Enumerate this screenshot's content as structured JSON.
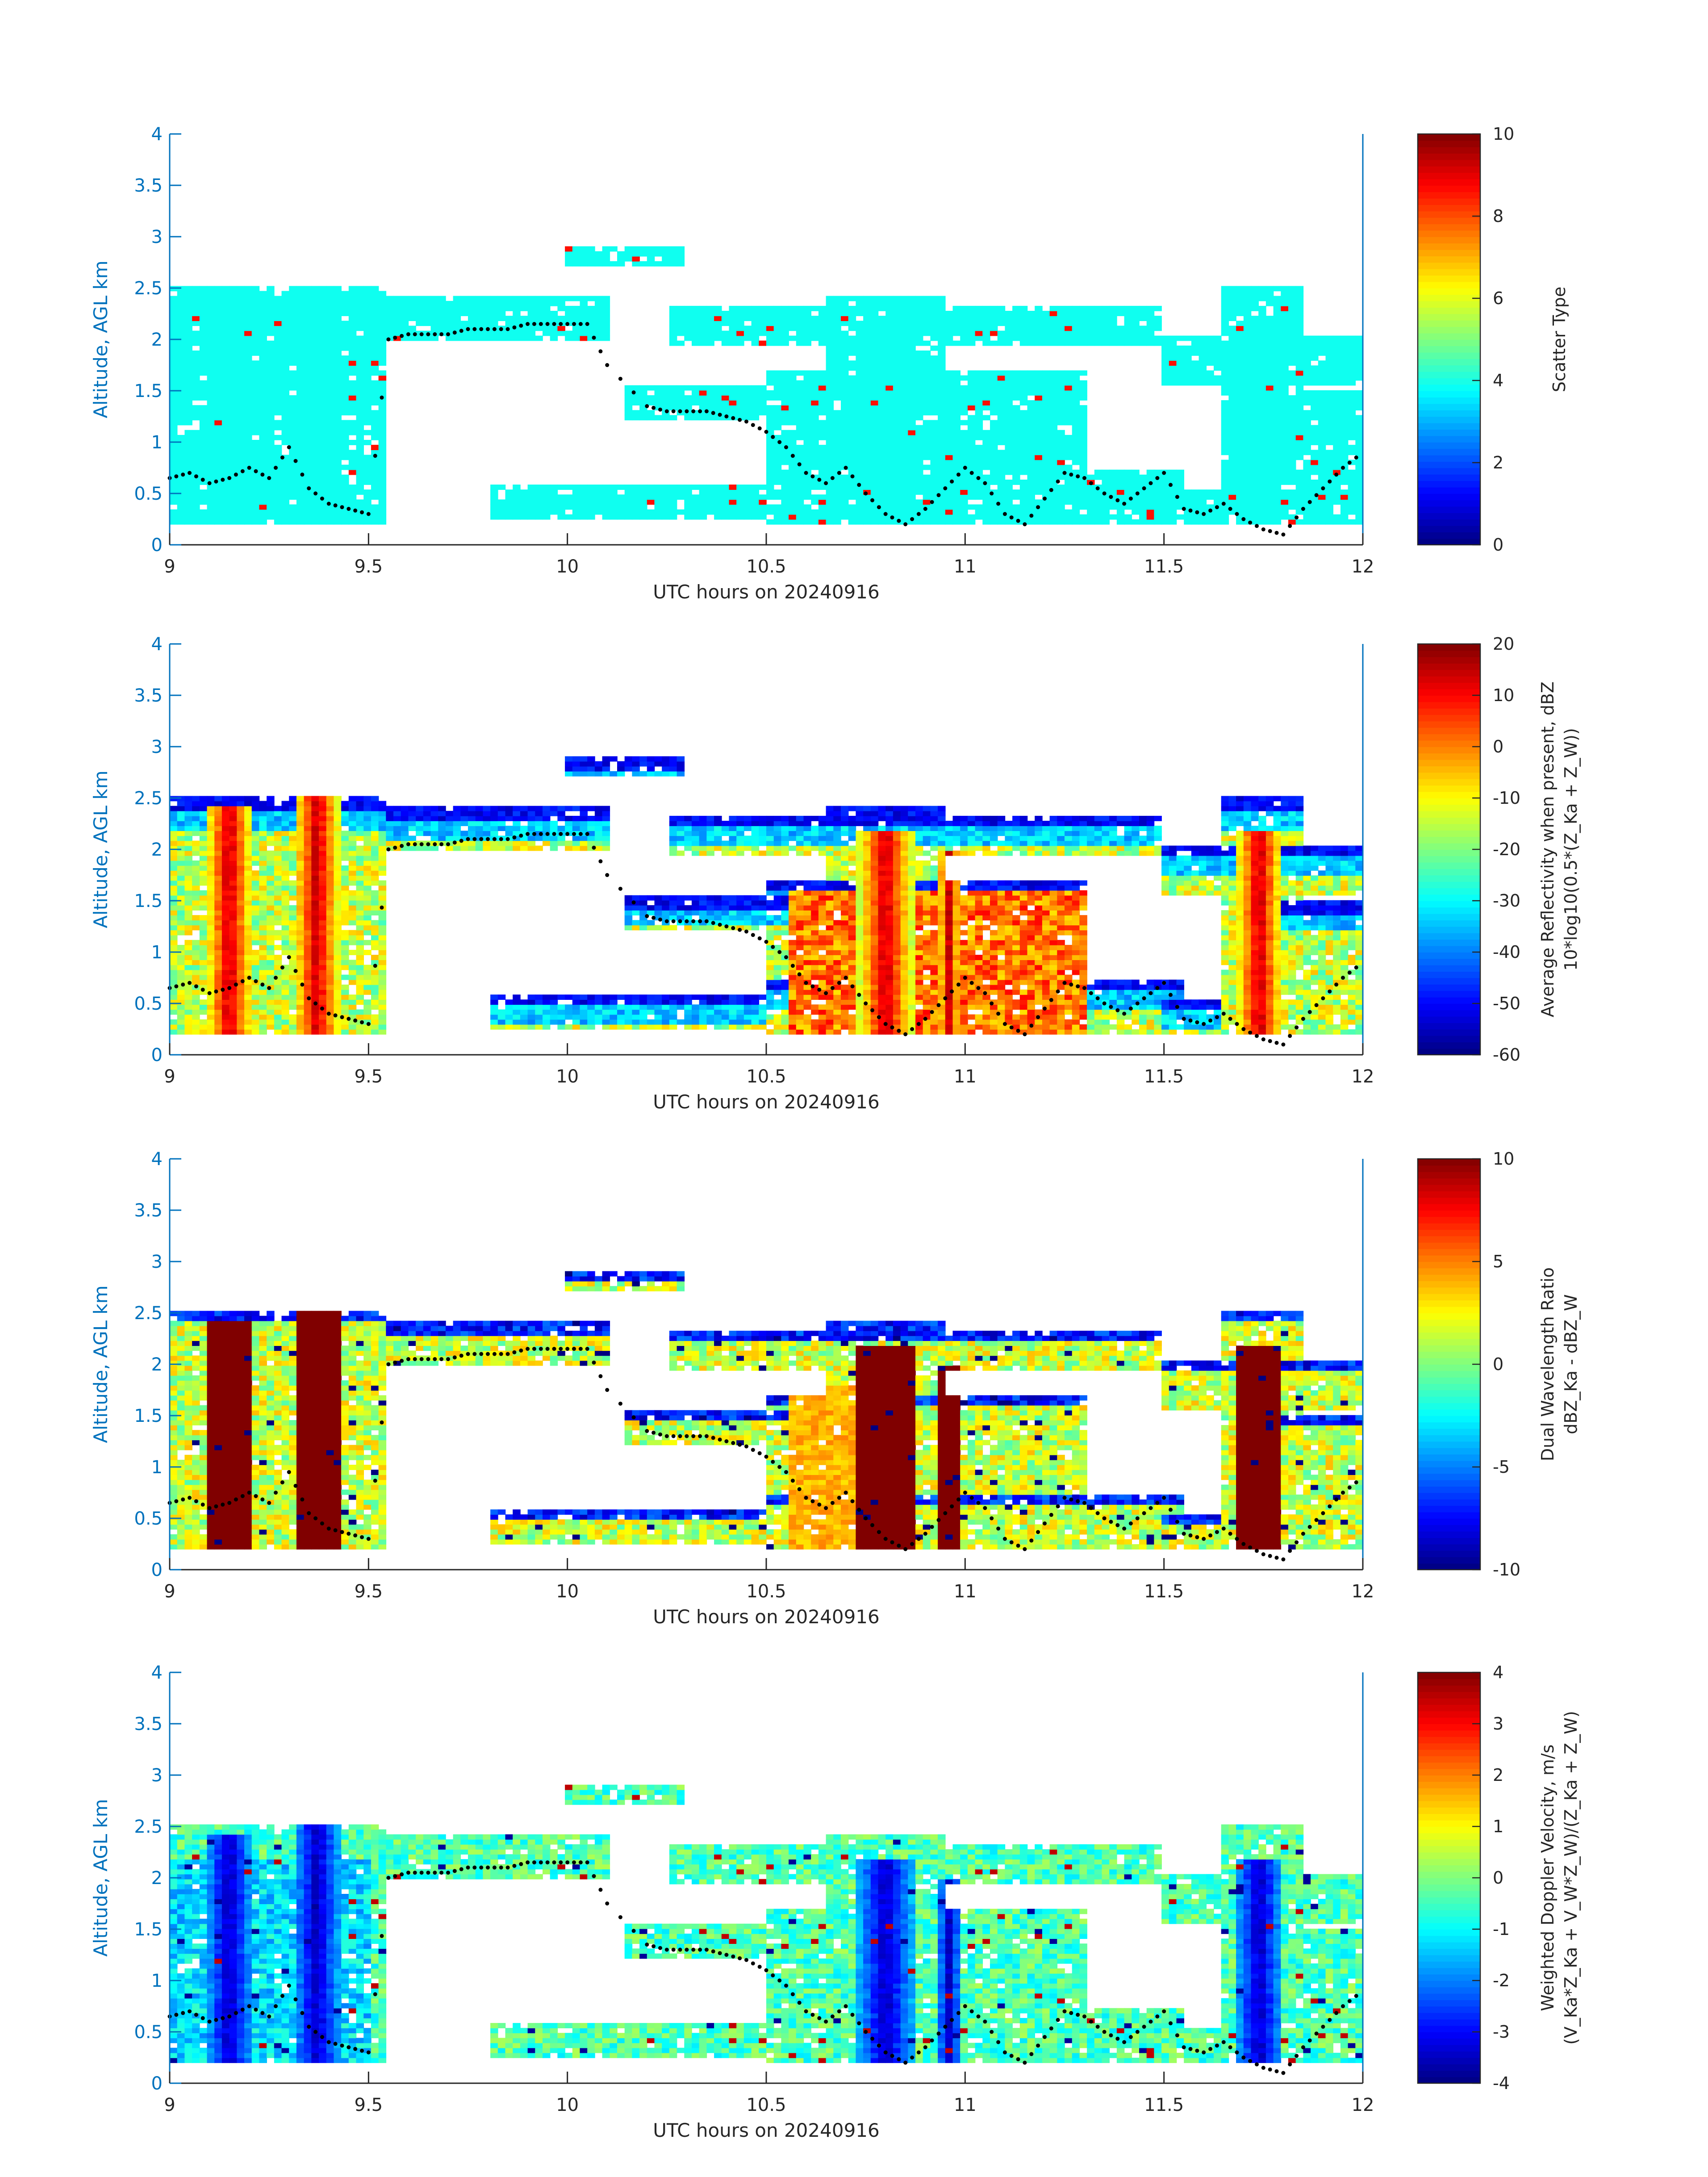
{
  "figure": {
    "background": "#ffffff",
    "axis_color": "#0072BD",
    "text_color": "#262626",
    "colormap": "jet"
  },
  "chart_data": [
    {
      "type": "heatmap",
      "title": "",
      "xlabel": "UTC hours on 20240916",
      "ylabel": "Altitude, AGL km",
      "xlim": [
        9,
        12
      ],
      "ylim": [
        0,
        4
      ],
      "xticks": [
        "9",
        "9.5",
        "10",
        "10.5",
        "11",
        "11.5",
        "12"
      ],
      "yticks": [
        "0",
        "0.5",
        "1",
        "1.5",
        "2",
        "2.5",
        "3",
        "3.5",
        "4"
      ],
      "colorbar": {
        "label_lines": [
          "Scatter Type"
        ],
        "clim": [
          0,
          10
        ],
        "ticks": [
          "0",
          "2",
          "4",
          "6",
          "8",
          "10"
        ]
      },
      "field": "scatter",
      "dominant_value": 3.9,
      "secondary_value": 8.6
    },
    {
      "type": "heatmap",
      "title": "",
      "xlabel": "UTC hours on 20240916",
      "ylabel": "Altitude, AGL km",
      "xlim": [
        9,
        12
      ],
      "ylim": [
        0,
        4
      ],
      "xticks": [
        "9",
        "9.5",
        "10",
        "10.5",
        "11",
        "11.5",
        "12"
      ],
      "yticks": [
        "0",
        "0.5",
        "1",
        "1.5",
        "2",
        "2.5",
        "3",
        "3.5",
        "4"
      ],
      "colorbar": {
        "label_lines": [
          "Average Reflectivity when present, dBZ",
          "10*log10(0.5*(Z_Ka + Z_W))"
        ],
        "clim": [
          -60,
          20
        ],
        "ticks": [
          "-60",
          "-50",
          "-40",
          "-30",
          "-20",
          "-10",
          "0",
          "10",
          "20"
        ]
      },
      "field": "reflectivity"
    },
    {
      "type": "heatmap",
      "title": "",
      "xlabel": "UTC hours on 20240916",
      "ylabel": "Altitude, AGL km",
      "xlim": [
        9,
        12
      ],
      "ylim": [
        0,
        4
      ],
      "xticks": [
        "9",
        "9.5",
        "10",
        "10.5",
        "11",
        "11.5",
        "12"
      ],
      "yticks": [
        "0",
        "0.5",
        "1",
        "1.5",
        "2",
        "2.5",
        "3",
        "3.5",
        "4"
      ],
      "colorbar": {
        "label_lines": [
          "Dual Wavelength Ratio",
          "dBZ_Ka - dBZ_W"
        ],
        "clim": [
          -10,
          10
        ],
        "ticks": [
          "-10",
          "-5",
          "0",
          "5",
          "10"
        ]
      },
      "field": "dwr"
    },
    {
      "type": "heatmap",
      "title": "",
      "xlabel": "UTC hours on 20240916",
      "ylabel": "Altitude, AGL km",
      "xlim": [
        9,
        12
      ],
      "ylim": [
        0,
        4
      ],
      "xticks": [
        "9",
        "9.5",
        "10",
        "10.5",
        "11",
        "11.5",
        "12"
      ],
      "yticks": [
        "0",
        "0.5",
        "1",
        "1.5",
        "2",
        "2.5",
        "3",
        "3.5",
        "4"
      ],
      "colorbar": {
        "label_lines": [
          "Weighted Doppler Velocity, m/s",
          "(V_Ka*Z_Ka + V_W*Z_W)/(Z_Ka + Z_W)"
        ],
        "clim": [
          -4,
          4
        ],
        "ticks": [
          "-4",
          "-3",
          "-2",
          "-1",
          "0",
          "1",
          "2",
          "3",
          "4"
        ]
      },
      "field": "velocity"
    }
  ],
  "cloud_mask": {
    "description_units": "hours / km",
    "regions": [
      {
        "t0": 9.0,
        "t1": 9.55,
        "z0": 0.2,
        "z1": 2.5
      },
      {
        "t0": 9.55,
        "t1": 10.1,
        "z0": 2.0,
        "z1": 2.4
      },
      {
        "t0": 10.0,
        "t1": 10.3,
        "z0": 2.7,
        "z1": 2.9
      },
      {
        "t0": 10.15,
        "t1": 10.55,
        "z0": 1.2,
        "z1": 1.55
      },
      {
        "t0": 10.25,
        "t1": 11.5,
        "z0": 1.95,
        "z1": 2.35
      },
      {
        "t0": 10.5,
        "t1": 11.3,
        "z0": 0.2,
        "z1": 1.7
      },
      {
        "t0": 10.65,
        "t1": 10.95,
        "z0": 0.2,
        "z1": 2.4
      },
      {
        "t0": 11.5,
        "t1": 12.0,
        "z0": 1.55,
        "z1": 2.05
      },
      {
        "t0": 11.65,
        "t1": 11.85,
        "z0": 0.2,
        "z1": 2.5
      },
      {
        "t0": 11.75,
        "t1": 12.0,
        "z0": 0.2,
        "z1": 1.5
      },
      {
        "t0": 9.8,
        "t1": 10.5,
        "z0": 0.25,
        "z1": 0.6
      },
      {
        "t0": 10.5,
        "t1": 11.55,
        "z0": 0.2,
        "z1": 0.75
      },
      {
        "t0": 11.5,
        "t1": 11.65,
        "z0": 0.2,
        "z1": 0.55
      }
    ]
  },
  "cores": [
    {
      "t": 9.15,
      "width": 0.06,
      "z_top": 2.4
    },
    {
      "t": 9.37,
      "width": 0.06,
      "z_top": 2.55
    },
    {
      "t": 10.8,
      "width": 0.07,
      "z_top": 2.2
    },
    {
      "t": 10.96,
      "width": 0.03,
      "z_top": 2.0
    },
    {
      "t": 11.74,
      "width": 0.06,
      "z_top": 2.2
    }
  ],
  "cloud_base_points": {
    "t": [
      9.0,
      9.05,
      9.1,
      9.15,
      9.2,
      9.25,
      9.3,
      9.35,
      9.4,
      9.45,
      9.5,
      9.55,
      9.6,
      9.65,
      9.7,
      9.75,
      9.8,
      9.85,
      9.9,
      9.95,
      10.0,
      10.05,
      10.1,
      10.2,
      10.25,
      10.3,
      10.35,
      10.4,
      10.45,
      10.5,
      10.55,
      10.6,
      10.65,
      10.7,
      10.75,
      10.8,
      10.85,
      10.9,
      10.95,
      11.0,
      11.05,
      11.1,
      11.15,
      11.2,
      11.25,
      11.3,
      11.35,
      11.4,
      11.45,
      11.5,
      11.55,
      11.6,
      11.65,
      11.7,
      11.75,
      11.8,
      11.85,
      11.9,
      11.95,
      12.0
    ],
    "z": [
      0.65,
      0.7,
      0.6,
      0.65,
      0.75,
      0.65,
      0.95,
      0.55,
      0.4,
      0.35,
      0.3,
      2.0,
      2.05,
      2.05,
      2.05,
      2.1,
      2.1,
      2.1,
      2.15,
      2.15,
      2.15,
      2.15,
      1.75,
      1.35,
      1.3,
      1.3,
      1.3,
      1.25,
      1.2,
      1.1,
      0.95,
      0.7,
      0.6,
      0.75,
      0.5,
      0.3,
      0.2,
      0.35,
      0.55,
      0.75,
      0.6,
      0.3,
      0.2,
      0.45,
      0.7,
      0.65,
      0.5,
      0.4,
      0.55,
      0.7,
      0.35,
      0.3,
      0.4,
      0.25,
      0.15,
      0.1,
      0.35,
      0.55,
      0.75,
      0.9
    ]
  }
}
